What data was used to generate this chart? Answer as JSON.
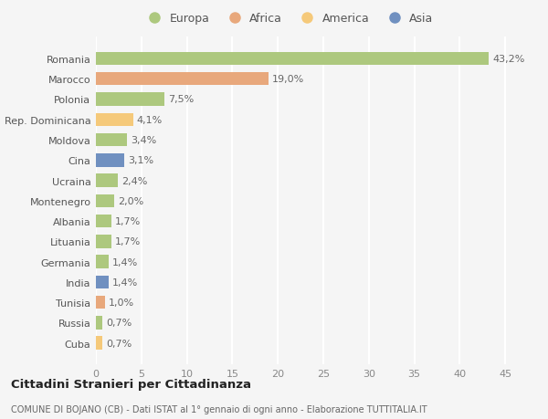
{
  "categories": [
    "Romania",
    "Marocco",
    "Polonia",
    "Rep. Dominicana",
    "Moldova",
    "Cina",
    "Ucraina",
    "Montenegro",
    "Albania",
    "Lituania",
    "Germania",
    "India",
    "Tunisia",
    "Russia",
    "Cuba"
  ],
  "values": [
    43.2,
    19.0,
    7.5,
    4.1,
    3.4,
    3.1,
    2.4,
    2.0,
    1.7,
    1.7,
    1.4,
    1.4,
    1.0,
    0.7,
    0.7
  ],
  "labels": [
    "43,2%",
    "19,0%",
    "7,5%",
    "4,1%",
    "3,4%",
    "3,1%",
    "2,4%",
    "2,0%",
    "1,7%",
    "1,7%",
    "1,4%",
    "1,4%",
    "1,0%",
    "0,7%",
    "0,7%"
  ],
  "colors": [
    "#adc87e",
    "#e8a87c",
    "#adc87e",
    "#f5c97a",
    "#adc87e",
    "#7090c0",
    "#adc87e",
    "#adc87e",
    "#adc87e",
    "#adc87e",
    "#adc87e",
    "#7090c0",
    "#e8a87c",
    "#adc87e",
    "#f5c97a"
  ],
  "legend_labels": [
    "Europa",
    "Africa",
    "America",
    "Asia"
  ],
  "legend_colors": [
    "#adc87e",
    "#e8a87c",
    "#f5c97a",
    "#7090c0"
  ],
  "xlim": [
    0,
    47
  ],
  "xticks": [
    0,
    5,
    10,
    15,
    20,
    25,
    30,
    35,
    40,
    45
  ],
  "title": "Cittadini Stranieri per Cittadinanza",
  "subtitle": "COMUNE DI BOJANO (CB) - Dati ISTAT al 1° gennaio di ogni anno - Elaborazione TUTTITALIA.IT",
  "background_color": "#f5f5f5",
  "bar_height": 0.65,
  "grid_color": "#ffffff",
  "label_fontsize": 8,
  "tick_fontsize": 8,
  "ytick_fontsize": 8
}
